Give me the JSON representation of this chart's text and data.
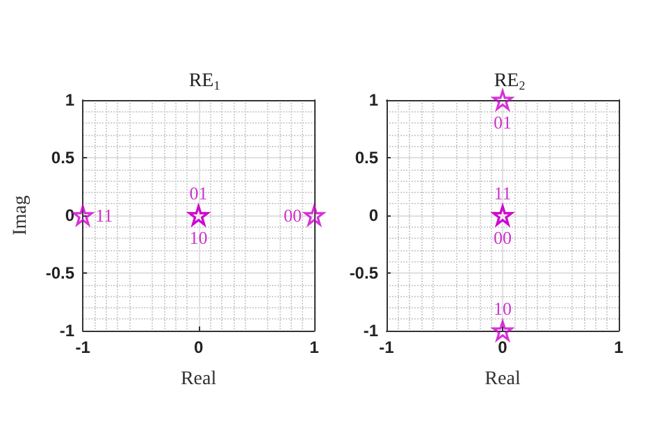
{
  "chart_data": [
    {
      "type": "scatter",
      "title": "RE$_{1}$",
      "xlabel": "Real",
      "ylabel": "Imag",
      "xlim": [
        -1,
        1
      ],
      "ylim": [
        -1,
        1
      ],
      "xticks": [
        -1,
        0,
        1
      ],
      "yticks": [
        -1,
        -0.5,
        0,
        0.5,
        1
      ],
      "grid": true,
      "marker": "star",
      "series": [
        {
          "color": "#cc00cc",
          "x": [
            -1,
            0,
            0,
            1
          ],
          "values": [
            0,
            0,
            0,
            0
          ]
        }
      ],
      "annotations": [
        {
          "text": "11",
          "x": -1,
          "y": 0
        },
        {
          "text": "01",
          "x": 0,
          "y": 0
        },
        {
          "text": "10",
          "x": 0,
          "y": 0
        },
        {
          "text": "00",
          "x": 1,
          "y": 0
        }
      ]
    },
    {
      "type": "scatter",
      "title": "RE$_{2}$",
      "xlabel": "Real",
      "xlim": [
        -1,
        1
      ],
      "ylim": [
        -1,
        1
      ],
      "xticks": [
        -1,
        0,
        1
      ],
      "yticks": [
        -1,
        -0.5,
        0,
        0.5,
        1
      ],
      "grid": true,
      "marker": "star",
      "series": [
        {
          "color": "#cc00cc",
          "x": [
            0,
            0,
            0,
            0
          ],
          "values": [
            1,
            0,
            0,
            -1
          ]
        }
      ],
      "annotations": [
        {
          "text": "01",
          "x": 0,
          "y": 1
        },
        {
          "text": "11",
          "x": 0,
          "y": 0
        },
        {
          "text": "00",
          "x": 0,
          "y": 0
        },
        {
          "text": "10",
          "x": 0,
          "y": -1
        }
      ]
    }
  ]
}
